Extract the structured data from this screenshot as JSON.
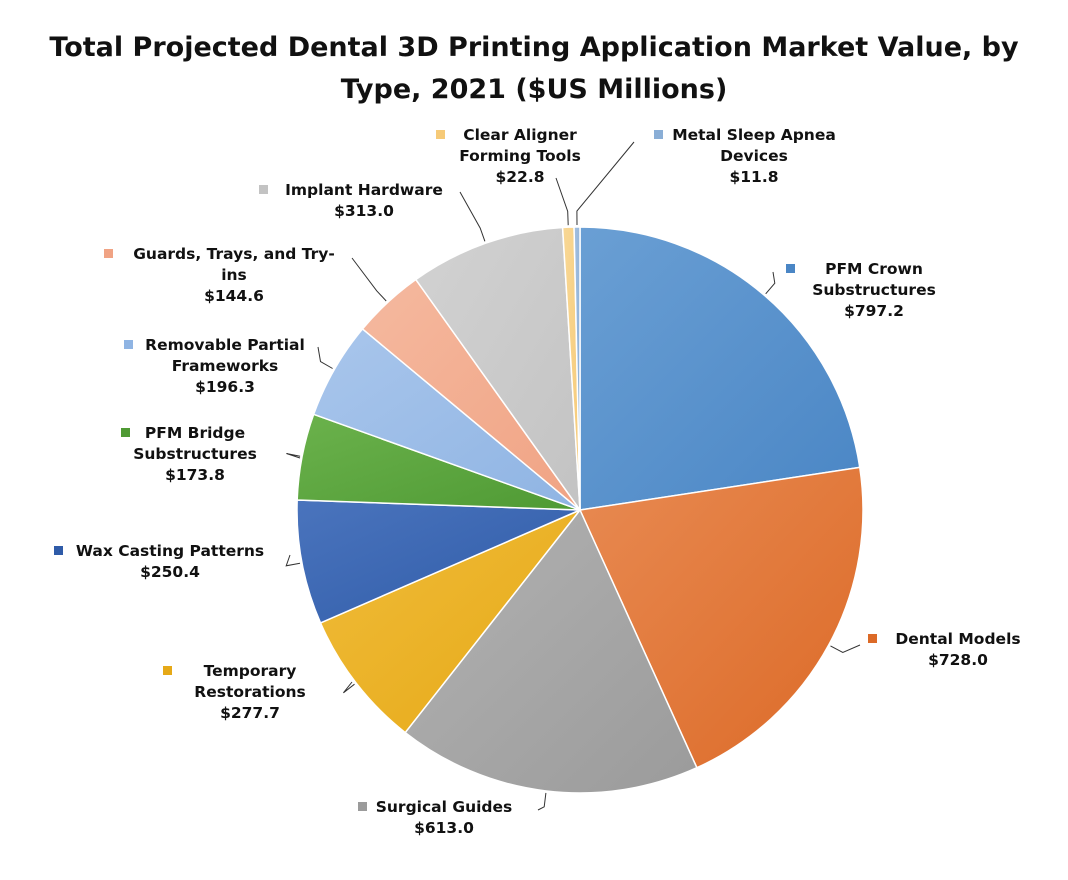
{
  "chart_data": {
    "type": "pie",
    "title_lines": [
      "Total Projected Dental 3D Printing Application Market Value, by",
      "Type, 2021 ($US Millions)"
    ],
    "start_angle_deg": 0,
    "direction": "clockwise",
    "slices": [
      {
        "name": "PFM Crown Substructures",
        "label_lines": [
          "PFM Crown",
          "Substructures"
        ],
        "value": 797.2,
        "value_label": "$797.2",
        "color": "#4a86c5",
        "light": "#6a9fd4"
      },
      {
        "name": "Dental Models",
        "label_lines": [
          "Dental Models"
        ],
        "value": 728.0,
        "value_label": "$728.0",
        "color": "#dc6a27",
        "light": "#e88a52"
      },
      {
        "name": "Surgical Guides",
        "label_lines": [
          "Surgical Guides"
        ],
        "value": 613.0,
        "value_label": "$613.0",
        "color": "#9b9b9b",
        "light": "#b2b2b2"
      },
      {
        "name": "Temporary Restorations",
        "label_lines": [
          "Temporary",
          "Restorations"
        ],
        "value": 277.7,
        "value_label": "$277.7",
        "color": "#e6a917",
        "light": "#f0bc3a"
      },
      {
        "name": "Wax Casting Patterns",
        "label_lines": [
          "Wax Casting Patterns"
        ],
        "value": 250.4,
        "value_label": "$250.4",
        "color": "#2f5ba8",
        "light": "#4a74bd"
      },
      {
        "name": "PFM Bridge Substructures",
        "label_lines": [
          "PFM Bridge",
          "Substructures"
        ],
        "value": 173.8,
        "value_label": "$173.8",
        "color": "#4f9a34",
        "light": "#6bb24c"
      },
      {
        "name": "Removable Partial Frameworks",
        "label_lines": [
          "Removable Partial",
          "Frameworks"
        ],
        "value": 196.3,
        "value_label": "$196.3",
        "color": "#8fb4e3",
        "light": "#a9c6ec"
      },
      {
        "name": "Guards, Trays, and Try-ins",
        "label_lines": [
          "Guards, Trays, and Try-",
          "ins"
        ],
        "value": 144.6,
        "value_label": "$144.6",
        "color": "#f0a384",
        "light": "#f5b99f"
      },
      {
        "name": "Implant Hardware",
        "label_lines": [
          "Implant Hardware"
        ],
        "value": 313.0,
        "value_label": "$313.0",
        "color": "#c3c3c3",
        "light": "#d2d2d2"
      },
      {
        "name": "Clear Aligner Forming Tools",
        "label_lines": [
          "Clear Aligner",
          "Forming Tools"
        ],
        "value": 22.8,
        "value_label": "$22.8",
        "color": "#f6ca78",
        "light": "#f8d896"
      },
      {
        "name": "Metal Sleep Apnea Devices",
        "label_lines": [
          "Metal Sleep Apnea",
          "Devices"
        ],
        "value": 11.8,
        "value_label": "$11.8",
        "color": "#8aaed6",
        "light": "#a3c0e0"
      }
    ]
  }
}
